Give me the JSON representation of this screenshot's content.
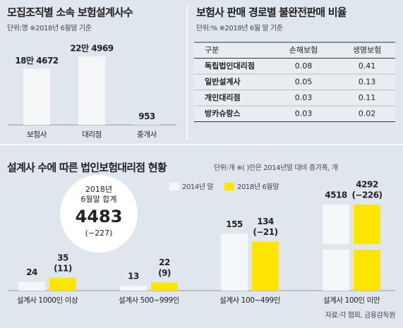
{
  "chart_data": [
    {
      "type": "bar",
      "title": "모집조직별 소속 보험설계사수",
      "subtitle": "단위:명  ※2018년 6월말 기준",
      "categories": [
        "보험사",
        "대리점",
        "중개사"
      ],
      "values": [
        184672,
        224969,
        953
      ],
      "value_labels": [
        "18만 4672",
        "22만 4969",
        "953"
      ],
      "color": "#f4f6f8"
    },
    {
      "type": "grouped-bar",
      "title": "설계사 수에 따른 법인보험대리점 현황",
      "subtitle": "단위:개  ※(  )안은 2014년말 대비 증가폭, 개",
      "categories": [
        "설계사 1000인 이상",
        "설계사 500~999인",
        "설계사 100~499인",
        "설계사 100인 미만"
      ],
      "series": [
        {
          "name": "2014년 말",
          "color": "#f4f6f8",
          "values": [
            24,
            13,
            155,
            4518
          ]
        },
        {
          "name": "2018년 6월말",
          "color": "#ffe500",
          "values": [
            35,
            22,
            134,
            4292
          ],
          "change_labels": [
            "(11)",
            "(9)",
            "(−21)",
            "(−226)"
          ]
        }
      ],
      "total_label": [
        "2018년",
        "6월말 합계"
      ],
      "total": 4483,
      "total_change": "(−227)"
    }
  ],
  "table": {
    "title": "보험사 판매 경로별 불완전판매 비율",
    "subtitle": "단위:%  ※2018년 6월 말 기준",
    "header": [
      "구분",
      "손해보험",
      "생명보험"
    ],
    "rows": [
      [
        "독립법인대리점",
        0.08,
        0.41
      ],
      [
        "일반설계사",
        0.05,
        0.13
      ],
      [
        "개인대리점",
        0.03,
        0.11
      ],
      [
        "방카슈랑스",
        0.03,
        0.02
      ]
    ]
  },
  "source": "자료:각 협회, 금융감독원"
}
